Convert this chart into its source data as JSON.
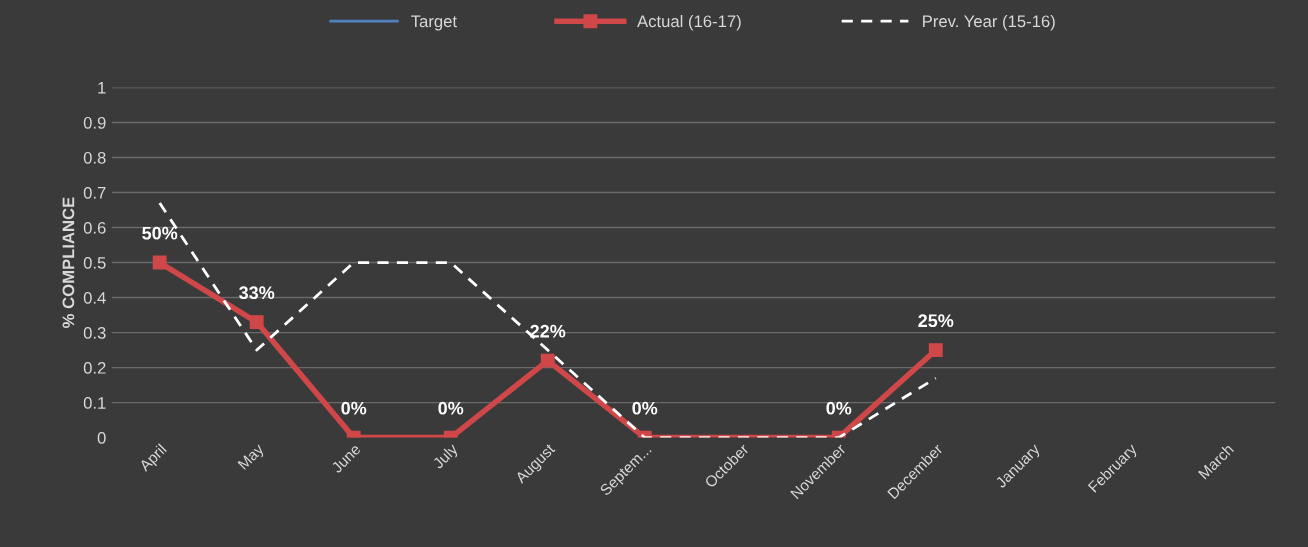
{
  "chart_data": {
    "type": "line",
    "ylabel": "% COMPLIANCE",
    "categories": [
      "April",
      "May",
      "June",
      "July",
      "August",
      "Septem...",
      "October",
      "November",
      "December",
      "January",
      "February",
      "March"
    ],
    "ylim": [
      0,
      1
    ],
    "yticks": [
      0,
      0.1,
      0.2,
      0.3,
      0.4,
      0.5,
      0.6,
      0.7,
      0.8,
      0.9,
      1
    ],
    "grid": "y",
    "legend": "top",
    "series": [
      {
        "name": "Target",
        "color": "#4f81bd",
        "line_style": "solid",
        "marker": "none",
        "values": [
          null,
          null,
          null,
          null,
          null,
          null,
          null,
          null,
          null,
          null,
          null,
          null
        ]
      },
      {
        "name": "Actual (16-17)",
        "color": "#d0474a",
        "line_style": "solid",
        "marker": "square",
        "values": [
          0.5,
          0.33,
          0,
          0,
          0.22,
          0,
          null,
          0,
          0.25,
          null,
          null,
          null
        ],
        "value_labels": [
          "50%",
          "33%",
          "0%",
          "0%",
          "22%",
          "0%",
          null,
          "0%",
          "25%",
          null,
          null,
          null
        ]
      },
      {
        "name": "Prev. Year (15-16)",
        "color": "#ffffff",
        "line_style": "dashed",
        "marker": "none",
        "values": [
          0.67,
          0.25,
          0.5,
          0.5,
          0.25,
          0,
          0,
          0,
          0.17,
          null,
          null,
          null
        ]
      }
    ]
  }
}
